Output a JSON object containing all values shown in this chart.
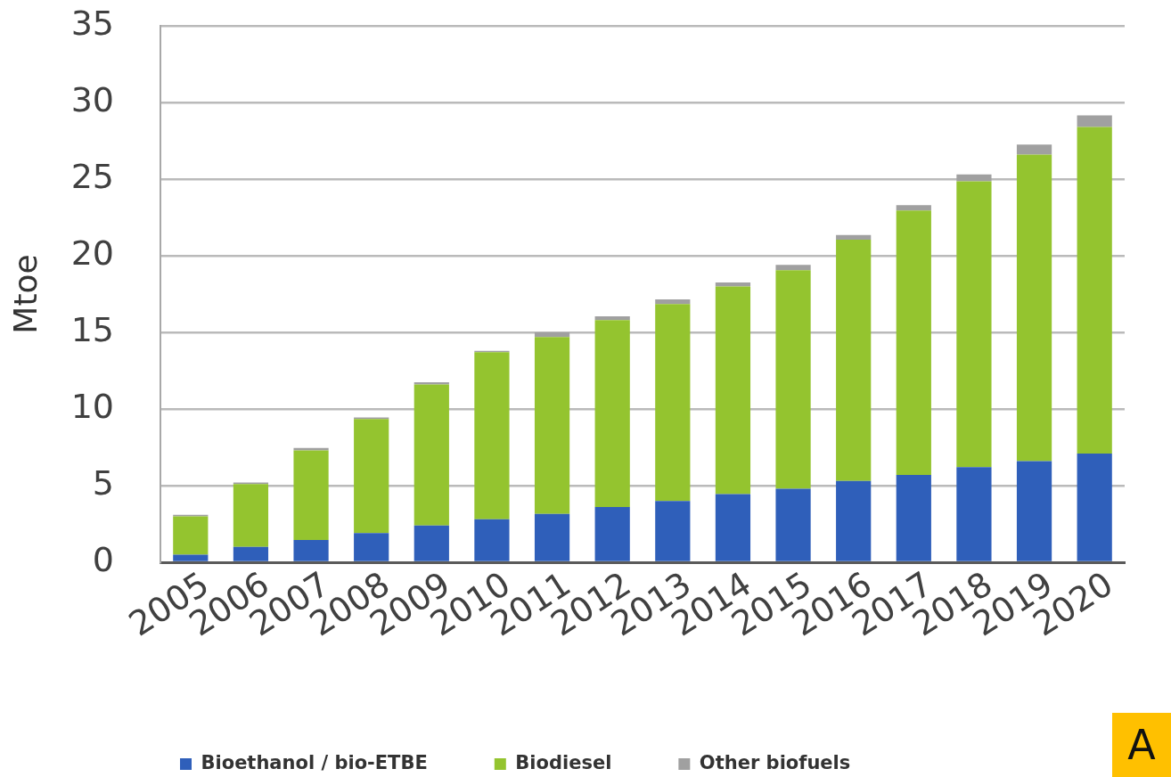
{
  "chart_data": {
    "type": "bar",
    "ylabel": "Mtoe",
    "categories": [
      "2005",
      "2006",
      "2007",
      "2008",
      "2009",
      "2010",
      "2011",
      "2012",
      "2013",
      "2014",
      "2015",
      "2016",
      "2017",
      "2018",
      "2019",
      "2020"
    ],
    "series": [
      {
        "name": "Bioethanol / bio-ETBE",
        "color": "#2f5fba",
        "values": [
          0.5,
          1.0,
          1.45,
          1.9,
          2.4,
          2.8,
          3.15,
          3.6,
          4.0,
          4.45,
          4.8,
          5.3,
          5.7,
          6.2,
          6.6,
          7.1
        ]
      },
      {
        "name": "Biodiesel",
        "color": "#94c42f",
        "values": [
          2.5,
          4.1,
          5.85,
          7.45,
          9.2,
          10.9,
          11.55,
          12.2,
          12.85,
          13.55,
          14.25,
          15.75,
          17.25,
          18.65,
          20.0,
          21.3
        ]
      },
      {
        "name": "Other biofuels",
        "color": "#a0a0a0",
        "values": [
          0.1,
          0.1,
          0.15,
          0.1,
          0.15,
          0.1,
          0.3,
          0.25,
          0.3,
          0.25,
          0.35,
          0.3,
          0.35,
          0.45,
          0.65,
          0.75
        ]
      }
    ],
    "stacked": true,
    "ylim": [
      0,
      35
    ],
    "yticks": [
      0,
      5,
      10,
      15,
      20,
      25,
      30,
      35
    ],
    "grid": "y",
    "legend": "bottom",
    "annotations": [
      "A"
    ]
  }
}
